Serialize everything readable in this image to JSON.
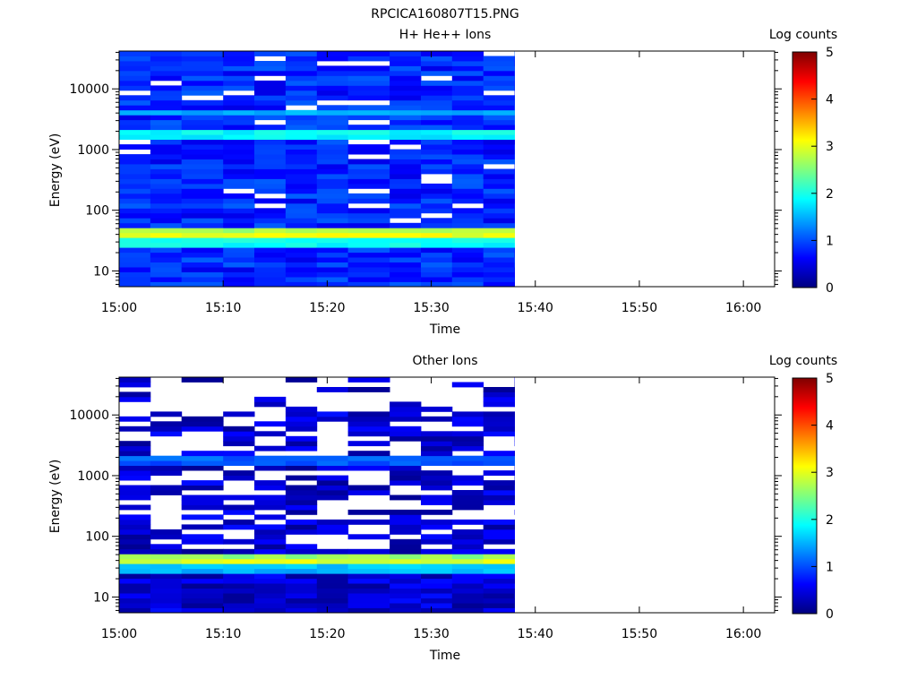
{
  "figure": {
    "filename": "RPCICA160807T15.PNG"
  },
  "colorbar": {
    "title": "Log counts",
    "min": 0,
    "max": 5,
    "ticks": [
      "0",
      "1",
      "2",
      "3",
      "4",
      "5"
    ],
    "colormap": [
      "#00007f",
      "#0000ff",
      "#007fff",
      "#00ffff",
      "#7fff7f",
      "#ffff00",
      "#ff7f00",
      "#ff0000",
      "#7f0000"
    ]
  },
  "chart_data": [
    {
      "type": "heatmap",
      "title": "H+ He++ Ions",
      "xlabel": "Time",
      "ylabel": "Energy (eV)",
      "x_ticks": [
        "15:00",
        "15:10",
        "15:20",
        "15:30",
        "15:40",
        "15:50",
        "16:00"
      ],
      "xlim": [
        "15:00",
        "16:03"
      ],
      "y_ticks": [
        "10",
        "100",
        "1000",
        "10000"
      ],
      "yscale": "log",
      "ylim": [
        5.5,
        42000
      ],
      "x_bins": [
        "15:00",
        "15:03",
        "15:06",
        "15:10",
        "15:13",
        "15:16",
        "15:19",
        "15:22",
        "15:26",
        "15:29",
        "15:32",
        "15:35",
        "15:38"
      ],
      "energy_bands": [
        {
          "energy_ev": 30,
          "level": 2.2
        },
        {
          "energy_ev": 40,
          "level": 3.1
        },
        {
          "energy_ev": 1800,
          "level": 2.1
        },
        {
          "energy_ev": 4000,
          "level": 1.5
        }
      ],
      "background_level": 0.5,
      "data_coverage": "15:00-15:38"
    },
    {
      "type": "heatmap",
      "title": "Other Ions",
      "xlabel": "Time",
      "ylabel": "Energy (eV)",
      "x_ticks": [
        "15:00",
        "15:10",
        "15:20",
        "15:30",
        "15:40",
        "15:50",
        "16:00"
      ],
      "xlim": [
        "15:00",
        "16:03"
      ],
      "y_ticks": [
        "10",
        "100",
        "1000",
        "10000"
      ],
      "yscale": "log",
      "ylim": [
        5.5,
        42000
      ],
      "x_bins": [
        "15:00",
        "15:03",
        "15:06",
        "15:10",
        "15:13",
        "15:16",
        "15:19",
        "15:22",
        "15:26",
        "15:29",
        "15:32",
        "15:35",
        "15:38"
      ],
      "energy_bands": [
        {
          "energy_ev": 30,
          "level": 1.8
        },
        {
          "energy_ev": 40,
          "level": 3.0
        },
        {
          "energy_ev": 1800,
          "level": 1.3
        }
      ],
      "background_level": 0.1,
      "data_coverage": "15:00-15:38"
    }
  ]
}
